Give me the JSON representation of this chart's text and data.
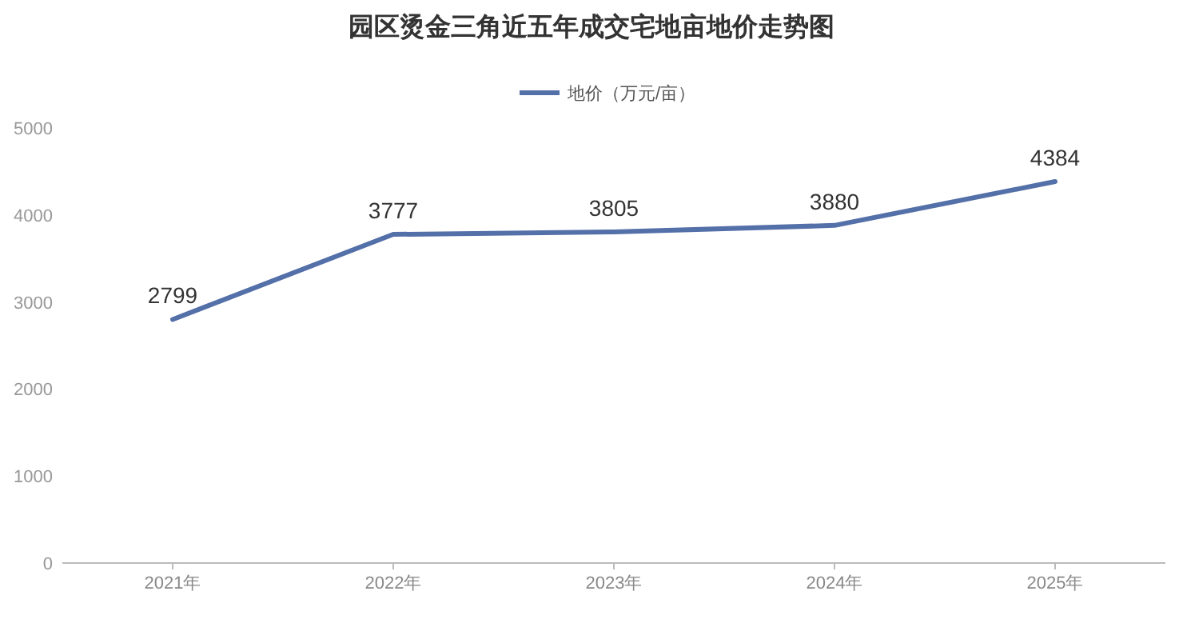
{
  "chart_data": {
    "type": "line",
    "title": "园区烫金三角近五年成交宅地亩地价走势图",
    "categories": [
      "2021年",
      "2022年",
      "2023年",
      "2024年",
      "2025年"
    ],
    "series": [
      {
        "name": "地价（万元/亩）",
        "color": "#5470a8",
        "values": [
          2799,
          3777,
          3805,
          3880,
          4384
        ]
      }
    ],
    "ylim": [
      0,
      5000
    ],
    "yticks": [
      0,
      1000,
      2000,
      3000,
      4000,
      5000
    ],
    "data_labels": true,
    "legend": "top",
    "line_style": "solid"
  }
}
